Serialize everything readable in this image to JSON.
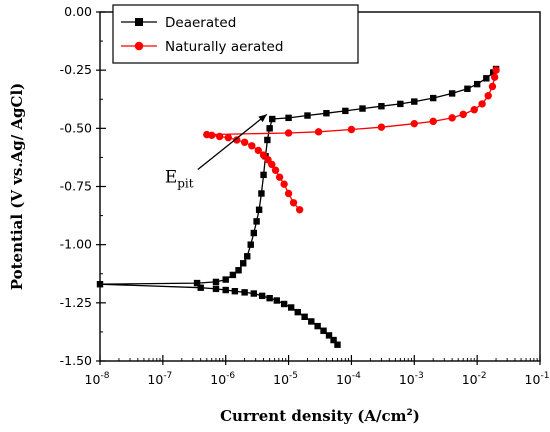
{
  "chart_data": {
    "type": "line",
    "xlabel_main": "Current density (A/cm",
    "xlabel_sup": "2",
    "xlabel_end": ")",
    "ylabel": "Potential (V vs.Ag/ AgCl)",
    "x_scale": "log",
    "xlim": [
      1e-08,
      0.1
    ],
    "ylim": [
      -1.5,
      0.0
    ],
    "x_ticks": [
      {
        "value": 1e-08,
        "base": "10",
        "exp": "-8"
      },
      {
        "value": 1e-07,
        "base": "10",
        "exp": "-7"
      },
      {
        "value": 1e-06,
        "base": "10",
        "exp": "-6"
      },
      {
        "value": 1e-05,
        "base": "10",
        "exp": "-5"
      },
      {
        "value": 0.0001,
        "base": "10",
        "exp": "-4"
      },
      {
        "value": 0.001,
        "base": "10",
        "exp": "-3"
      },
      {
        "value": 0.01,
        "base": "10",
        "exp": "-2"
      },
      {
        "value": 0.1,
        "base": "10",
        "exp": "-1"
      }
    ],
    "y_ticks": [
      {
        "value": 0.0,
        "label": "0.00"
      },
      {
        "value": -0.25,
        "label": "-0.25"
      },
      {
        "value": -0.5,
        "label": "-0.50"
      },
      {
        "value": -0.75,
        "label": "-0.75"
      },
      {
        "value": -1.0,
        "label": "-1.00"
      },
      {
        "value": -1.25,
        "label": "-1.25"
      },
      {
        "value": -1.5,
        "label": "-1.50"
      }
    ],
    "grid": false,
    "legend_position": "top-right",
    "series": [
      {
        "name": "Deaerated",
        "color": "#000000",
        "marker": "square",
        "x": [
          6e-05,
          5.2e-05,
          4.4e-05,
          3.6e-05,
          2.9e-05,
          2.3e-05,
          1.8e-05,
          1.4e-05,
          1.1e-05,
          8.5e-06,
          6.5e-06,
          5e-06,
          3.8e-06,
          2.8e-06,
          2e-06,
          1.4e-06,
          1e-06,
          7e-07,
          4e-07,
          1e-08,
          3.5e-07,
          7e-07,
          1e-06,
          1.3e-06,
          1.6e-06,
          1.9e-06,
          2.2e-06,
          2.5e-06,
          2.8e-06,
          3.1e-06,
          3.4e-06,
          3.7e-06,
          4e-06,
          4.3e-06,
          4.6e-06,
          5e-06,
          5.5e-06,
          1e-05,
          2e-05,
          4e-05,
          8e-05,
          0.00015,
          0.0003,
          0.0006,
          0.001,
          0.002,
          0.004,
          0.007,
          0.01,
          0.014,
          0.018,
          0.02
        ],
        "y": [
          -1.43,
          -1.41,
          -1.39,
          -1.37,
          -1.35,
          -1.33,
          -1.31,
          -1.29,
          -1.27,
          -1.255,
          -1.24,
          -1.23,
          -1.22,
          -1.21,
          -1.205,
          -1.2,
          -1.195,
          -1.19,
          -1.185,
          -1.17,
          -1.165,
          -1.16,
          -1.15,
          -1.13,
          -1.11,
          -1.08,
          -1.05,
          -1.0,
          -0.95,
          -0.9,
          -0.85,
          -0.78,
          -0.7,
          -0.62,
          -0.55,
          -0.5,
          -0.46,
          -0.455,
          -0.445,
          -0.435,
          -0.425,
          -0.415,
          -0.405,
          -0.395,
          -0.385,
          -0.37,
          -0.35,
          -0.33,
          -0.31,
          -0.285,
          -0.26,
          -0.245
        ]
      },
      {
        "name": "Naturally aerated",
        "color": "#ff0000",
        "marker": "circle",
        "x": [
          1.5e-05,
          1.2e-05,
          1e-05,
          8.5e-06,
          7.2e-06,
          6.2e-06,
          5.4e-06,
          4.7e-06,
          4e-06,
          3.3e-06,
          2.6e-06,
          2e-06,
          1.5e-06,
          1.1e-06,
          8e-07,
          6e-07,
          5e-07,
          1e-05,
          3e-05,
          0.0001,
          0.0003,
          0.001,
          0.002,
          0.004,
          0.006,
          0.009,
          0.012,
          0.015,
          0.0175,
          0.019,
          0.02
        ],
        "y": [
          -0.85,
          -0.82,
          -0.78,
          -0.74,
          -0.71,
          -0.68,
          -0.655,
          -0.635,
          -0.615,
          -0.595,
          -0.575,
          -0.56,
          -0.55,
          -0.54,
          -0.535,
          -0.53,
          -0.527,
          -0.52,
          -0.515,
          -0.505,
          -0.495,
          -0.48,
          -0.47,
          -0.455,
          -0.44,
          -0.42,
          -0.395,
          -0.36,
          -0.32,
          -0.28,
          -0.25
        ]
      }
    ],
    "annotations": [
      {
        "name": "E-pit",
        "text": "E",
        "sub": "pit",
        "anchor_x": 4.5e-06,
        "anchor_y": -0.44,
        "text_x": 1.2e-07,
        "text_y": -0.72
      }
    ]
  }
}
